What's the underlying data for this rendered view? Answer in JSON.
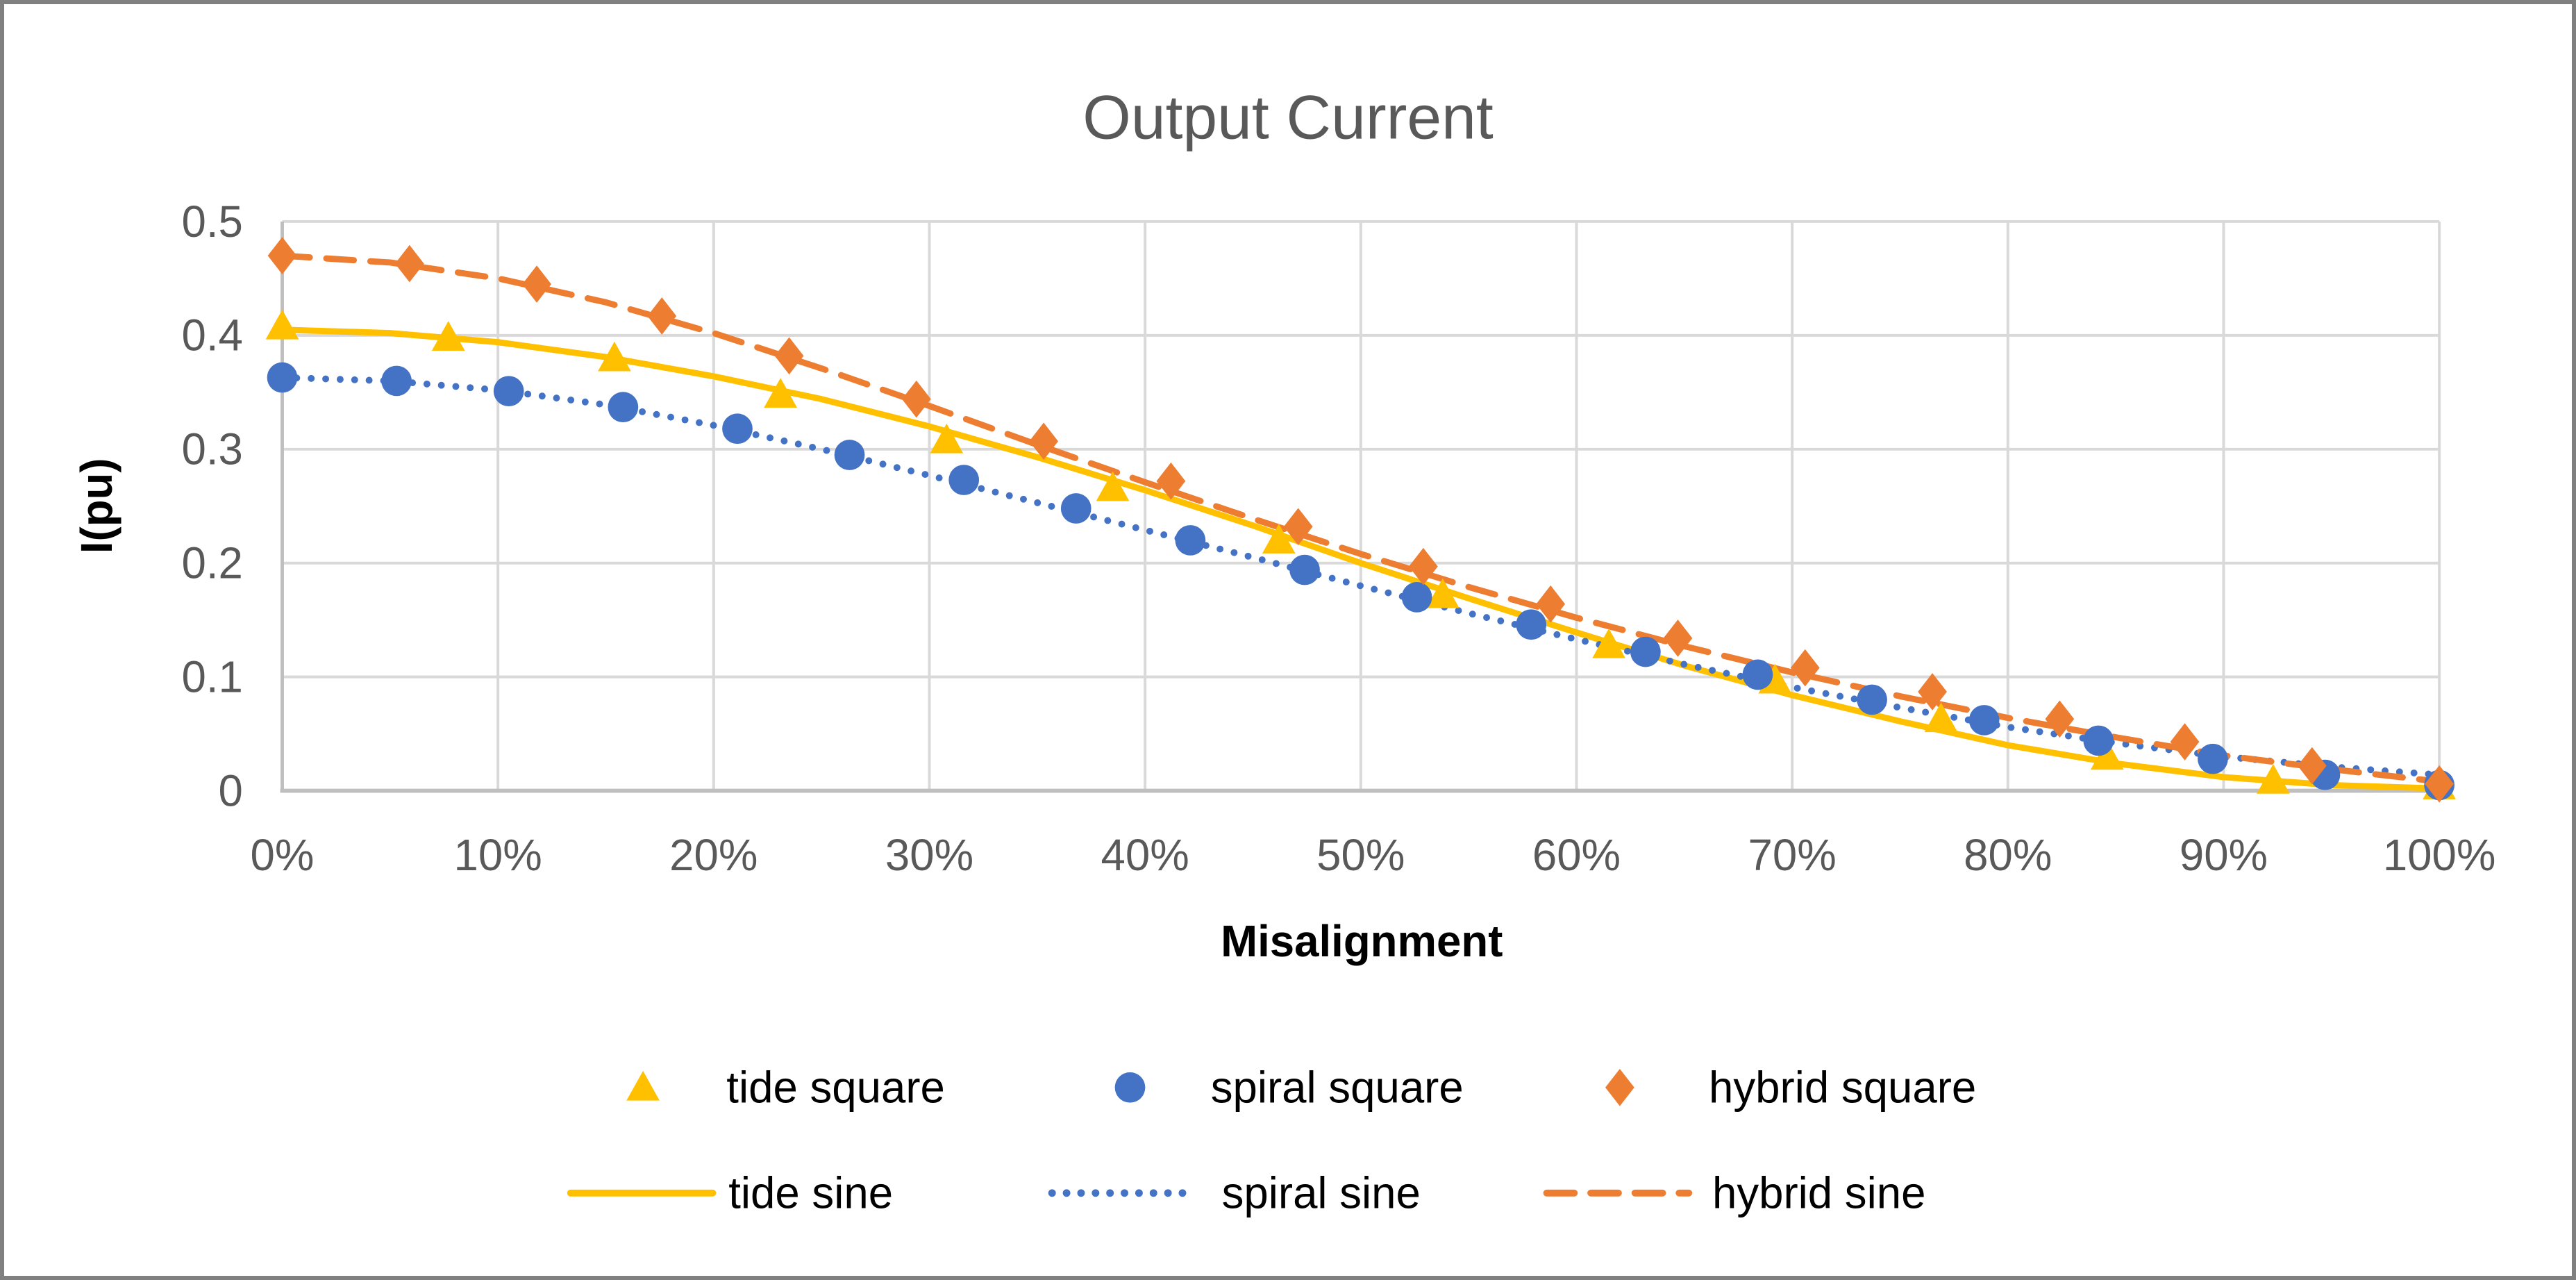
{
  "figure": {
    "title": "Output Current"
  },
  "chart_data": {
    "type": "line",
    "title": "Output Current",
    "xlabel": "Misalignment",
    "ylabel": "I(pu)",
    "xlim": [
      0,
      100
    ],
    "ylim": [
      0,
      0.5
    ],
    "x_ticks": [
      "0%",
      "10%",
      "20%",
      "30%",
      "40%",
      "50%",
      "60%",
      "70%",
      "80%",
      "90%",
      "100%"
    ],
    "x_tick_values": [
      0,
      10,
      20,
      30,
      40,
      50,
      60,
      70,
      80,
      90,
      100
    ],
    "y_ticks": [
      "0",
      "0.1",
      "0.2",
      "0.3",
      "0.4",
      "0.5"
    ],
    "y_tick_values": [
      0,
      0.1,
      0.2,
      0.3,
      0.4,
      0.5
    ],
    "grid": true,
    "legend_position": "bottom",
    "colors": {
      "tide": "#FFC000",
      "spiral": "#4472C4",
      "hybrid": "#ED7D31",
      "gridline": "#D9D9D9",
      "axis_line": "#BFBFBF",
      "tick_text": "#595959",
      "title_text": "#595959",
      "label_text": "#000000",
      "figure_border": "#808080"
    },
    "series": [
      {
        "name": "tide square",
        "color_key": "tide",
        "style": "scatter",
        "marker": "triangle",
        "x": [
          0,
          7.7,
          15.4,
          23.1,
          30.8,
          38.5,
          46.2,
          53.8,
          61.5,
          69.2,
          76.9,
          84.6,
          92.3,
          100
        ],
        "y": [
          0.408,
          0.398,
          0.38,
          0.348,
          0.308,
          0.266,
          0.22,
          0.172,
          0.128,
          0.097,
          0.063,
          0.03,
          0.009,
          0.004
        ]
      },
      {
        "name": "spiral square",
        "color_key": "spiral",
        "style": "scatter",
        "marker": "circle",
        "x": [
          0,
          5.3,
          10.5,
          15.8,
          21.1,
          26.3,
          31.6,
          36.8,
          42.1,
          47.4,
          52.6,
          57.9,
          63.2,
          68.4,
          73.7,
          78.9,
          84.2,
          89.5,
          94.7,
          100
        ],
        "y": [
          0.363,
          0.36,
          0.351,
          0.337,
          0.318,
          0.295,
          0.273,
          0.248,
          0.22,
          0.194,
          0.17,
          0.146,
          0.122,
          0.102,
          0.08,
          0.062,
          0.044,
          0.028,
          0.014,
          0.005
        ]
      },
      {
        "name": "hybrid square",
        "color_key": "hybrid",
        "style": "scatter",
        "marker": "diamond",
        "x": [
          0,
          5.9,
          11.8,
          17.6,
          23.5,
          29.4,
          35.3,
          41.2,
          47.1,
          52.9,
          58.8,
          64.7,
          70.6,
          76.5,
          82.4,
          88.2,
          94.1,
          100
        ],
        "y": [
          0.47,
          0.463,
          0.445,
          0.417,
          0.382,
          0.344,
          0.307,
          0.272,
          0.232,
          0.197,
          0.164,
          0.134,
          0.108,
          0.087,
          0.063,
          0.043,
          0.022,
          0.006
        ]
      },
      {
        "name": "tide sine",
        "color_key": "tide",
        "style": "line",
        "dash": "solid",
        "x": [
          0,
          5,
          10,
          15,
          20,
          25,
          30,
          35,
          40,
          45,
          50,
          55,
          60,
          65,
          70,
          75,
          80,
          85,
          90,
          95,
          100
        ],
        "y": [
          0.405,
          0.402,
          0.394,
          0.381,
          0.364,
          0.344,
          0.32,
          0.293,
          0.264,
          0.233,
          0.2,
          0.169,
          0.139,
          0.11,
          0.084,
          0.061,
          0.04,
          0.024,
          0.012,
          0.005,
          0.002
        ]
      },
      {
        "name": "spiral sine",
        "color_key": "spiral",
        "style": "line",
        "dash": "dotted",
        "x": [
          0,
          5,
          10,
          15,
          20,
          25,
          30,
          35,
          40,
          45,
          50,
          55,
          60,
          65,
          70,
          75,
          80,
          85,
          90,
          95,
          100
        ],
        "y": [
          0.363,
          0.36,
          0.352,
          0.339,
          0.321,
          0.3,
          0.277,
          0.253,
          0.229,
          0.205,
          0.18,
          0.156,
          0.133,
          0.111,
          0.091,
          0.073,
          0.056,
          0.042,
          0.03,
          0.021,
          0.014
        ]
      },
      {
        "name": "hybrid sine",
        "color_key": "hybrid",
        "style": "line",
        "dash": "dashed",
        "x": [
          0,
          5,
          10,
          15,
          20,
          25,
          30,
          35,
          40,
          45,
          50,
          55,
          60,
          65,
          70,
          75,
          80,
          85,
          90,
          95,
          100
        ],
        "y": [
          0.47,
          0.464,
          0.45,
          0.429,
          0.402,
          0.371,
          0.338,
          0.304,
          0.271,
          0.239,
          0.208,
          0.179,
          0.152,
          0.127,
          0.104,
          0.083,
          0.064,
          0.047,
          0.031,
          0.019,
          0.008
        ]
      }
    ]
  }
}
